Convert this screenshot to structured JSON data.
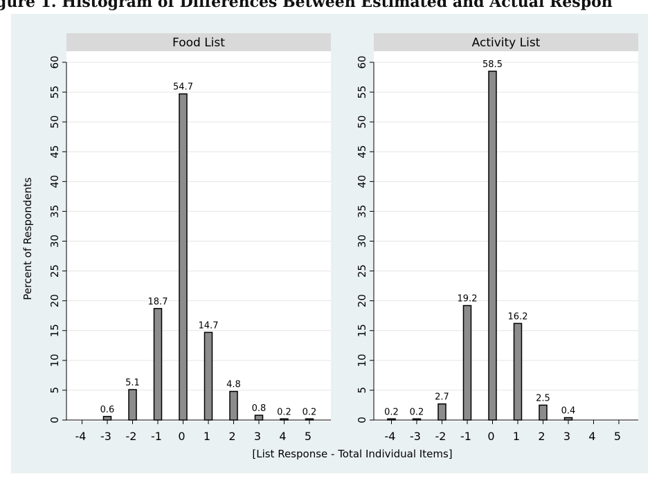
{
  "figure": {
    "title_fragment": "gure 1. Histogram of Differences Between Estimated and Actual Respon",
    "ylabel": "Percent of Respondents",
    "xlabel": "[List Response - Total Individual Items]",
    "colors": {
      "background": "#eaf1f3",
      "panel": "#ffffff",
      "strip": "#d9d9d9",
      "bar_fill": "#8c8c8c",
      "bar_stroke": "#000000",
      "grid": "#e4e4e4"
    }
  },
  "chart_data": [
    {
      "type": "bar",
      "title": "Food List",
      "categories": [
        "-4",
        "-3",
        "-2",
        "-1",
        "0",
        "1",
        "2",
        "3",
        "4",
        "5"
      ],
      "values": [
        null,
        0.6,
        5.1,
        18.7,
        54.7,
        14.7,
        4.8,
        0.8,
        0.2,
        0.2
      ],
      "labels": [
        "",
        "0.6",
        "5.1",
        "18.7",
        "54.7",
        "14.7",
        "4.8",
        "0.8",
        "0.2",
        "0.2"
      ],
      "ylim": [
        0,
        60
      ],
      "yticks": [
        0,
        5,
        10,
        15,
        20,
        25,
        30,
        35,
        40,
        45,
        50,
        55,
        60
      ],
      "grid": true
    },
    {
      "type": "bar",
      "title": "Activity List",
      "categories": [
        "-4",
        "-3",
        "-2",
        "-1",
        "0",
        "1",
        "2",
        "3",
        "4",
        "5"
      ],
      "values": [
        0.2,
        0.2,
        2.7,
        19.2,
        58.5,
        16.2,
        2.5,
        0.4,
        null,
        null
      ],
      "labels": [
        "0.2",
        "0.2",
        "2.7",
        "19.2",
        "58.5",
        "16.2",
        "2.5",
        "0.4",
        "",
        ""
      ],
      "ylim": [
        0,
        60
      ],
      "yticks": [
        0,
        5,
        10,
        15,
        20,
        25,
        30,
        35,
        40,
        45,
        50,
        55,
        60
      ],
      "grid": true
    }
  ]
}
